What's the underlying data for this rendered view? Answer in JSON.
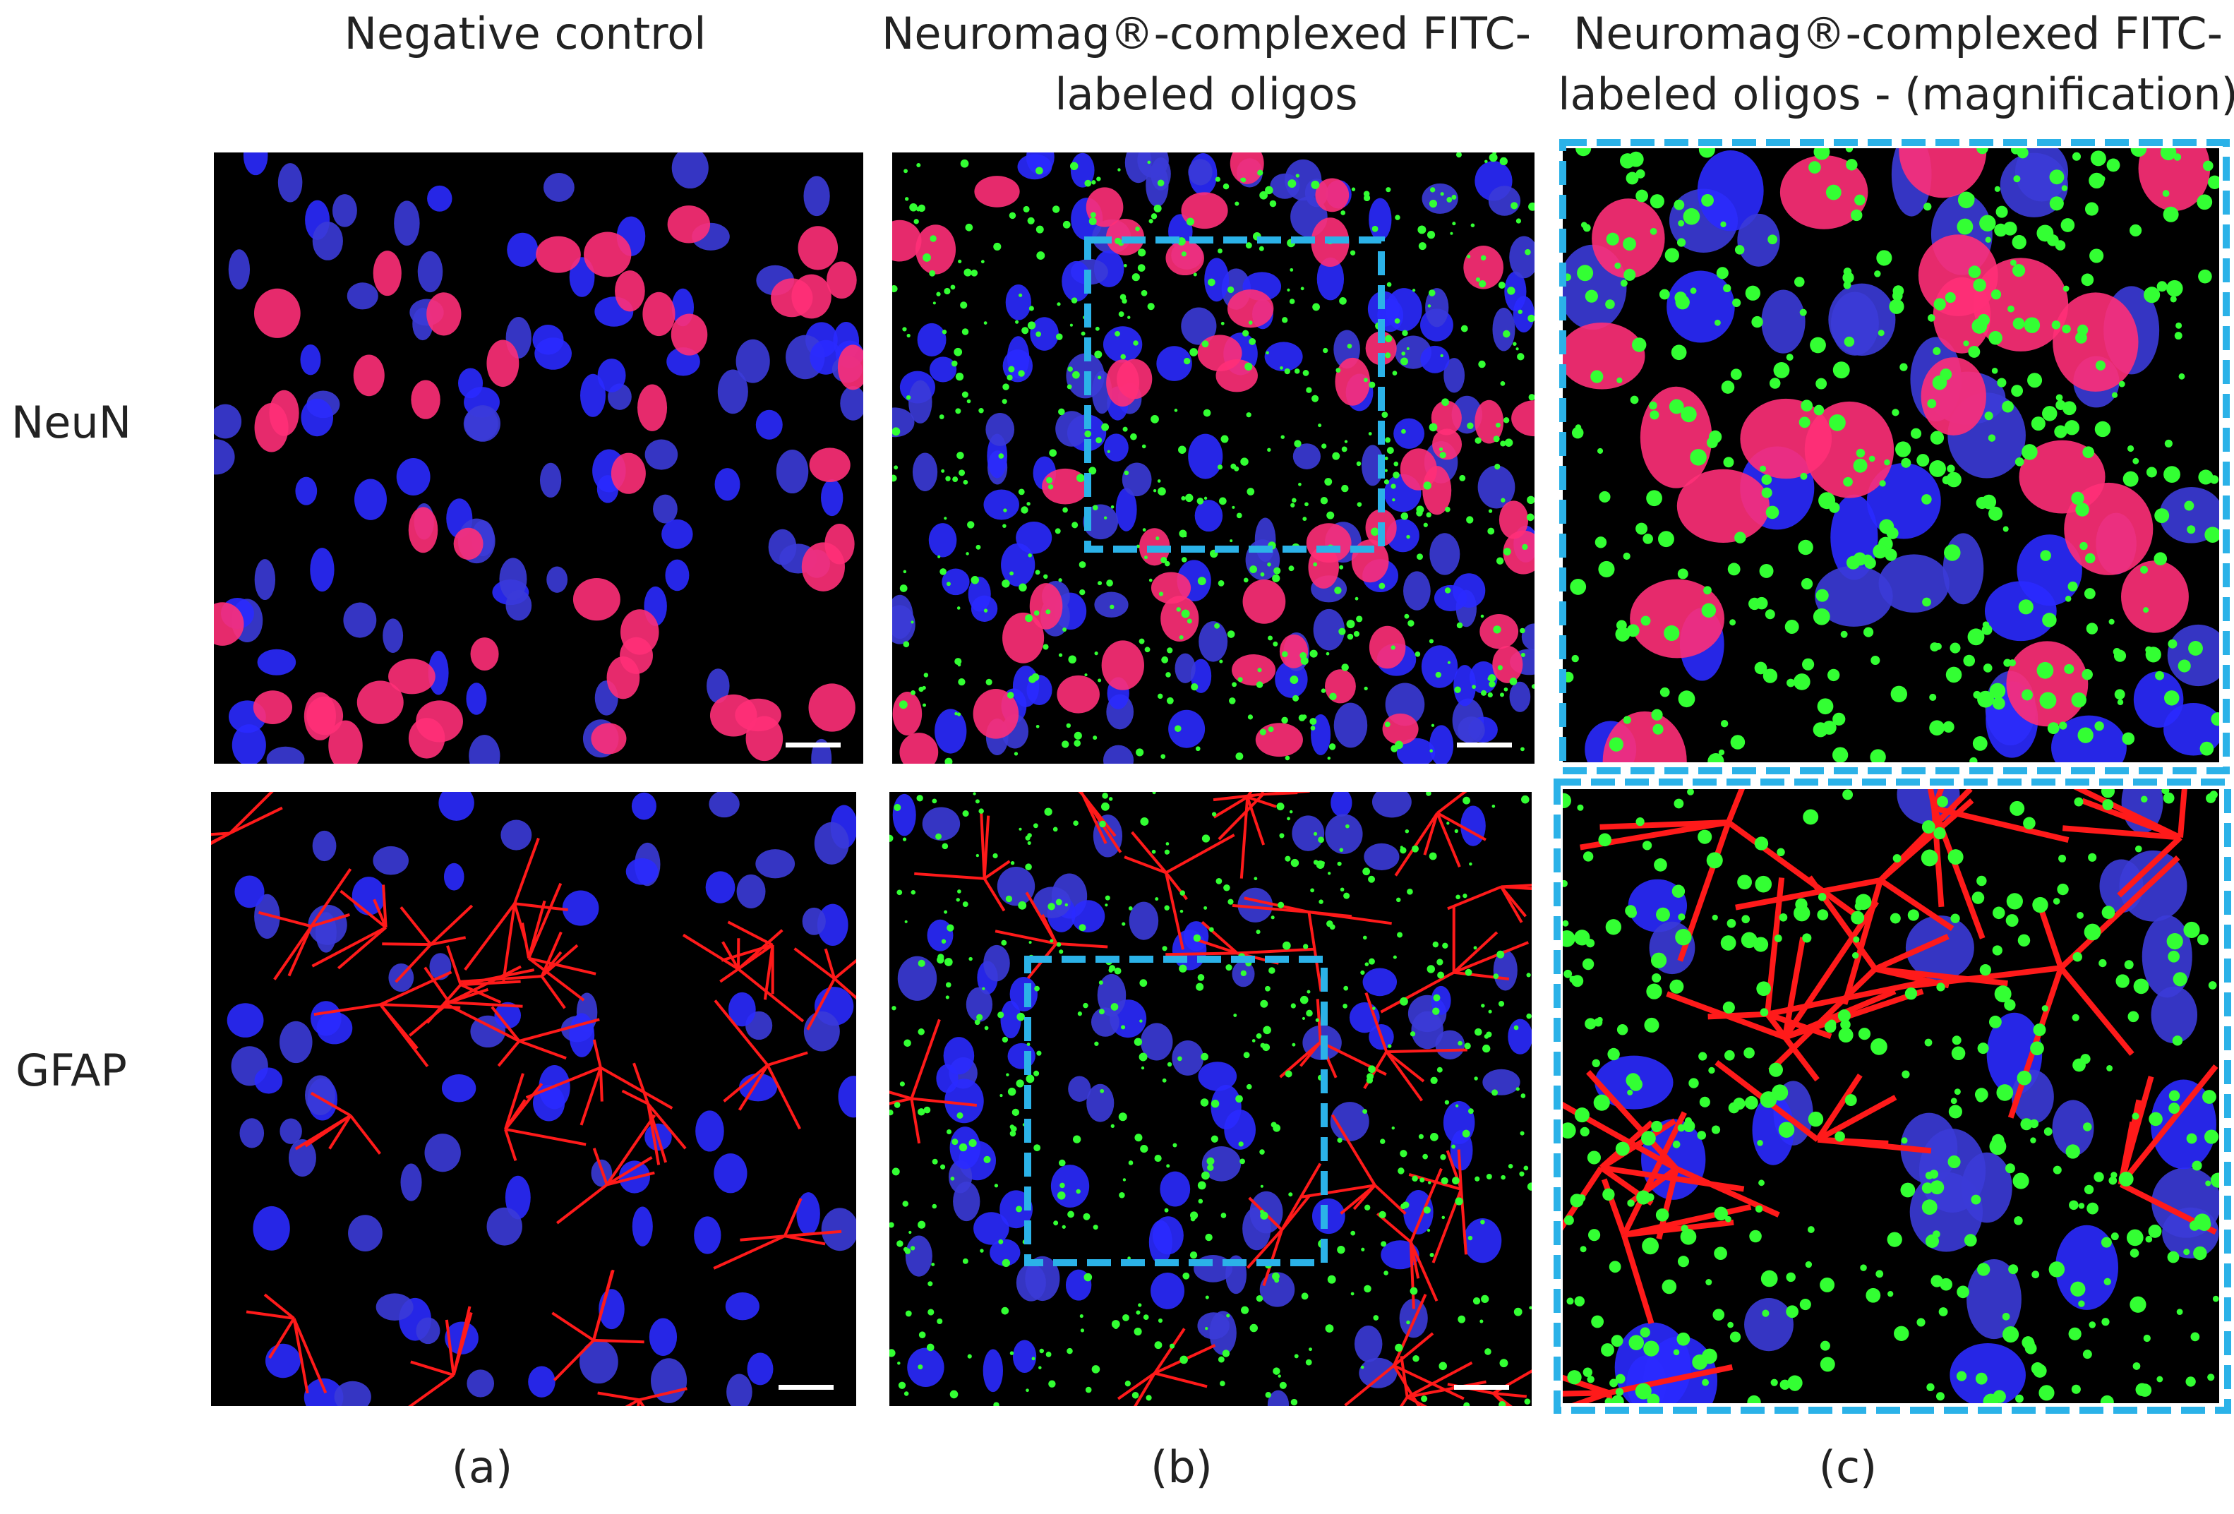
{
  "columns": [
    {
      "lines": [
        "Negative control"
      ]
    },
    {
      "lines": [
        "Neuromag®-complexed FITC-",
        "labeled oligos"
      ]
    },
    {
      "lines": [
        "Neuromag®-complexed FITC-",
        "labeled oligos - (magnification)"
      ]
    }
  ],
  "rows": [
    "NeuN",
    "GFAP"
  ],
  "panel_labels": [
    "(a)",
    "(b)",
    "(c)"
  ]
}
